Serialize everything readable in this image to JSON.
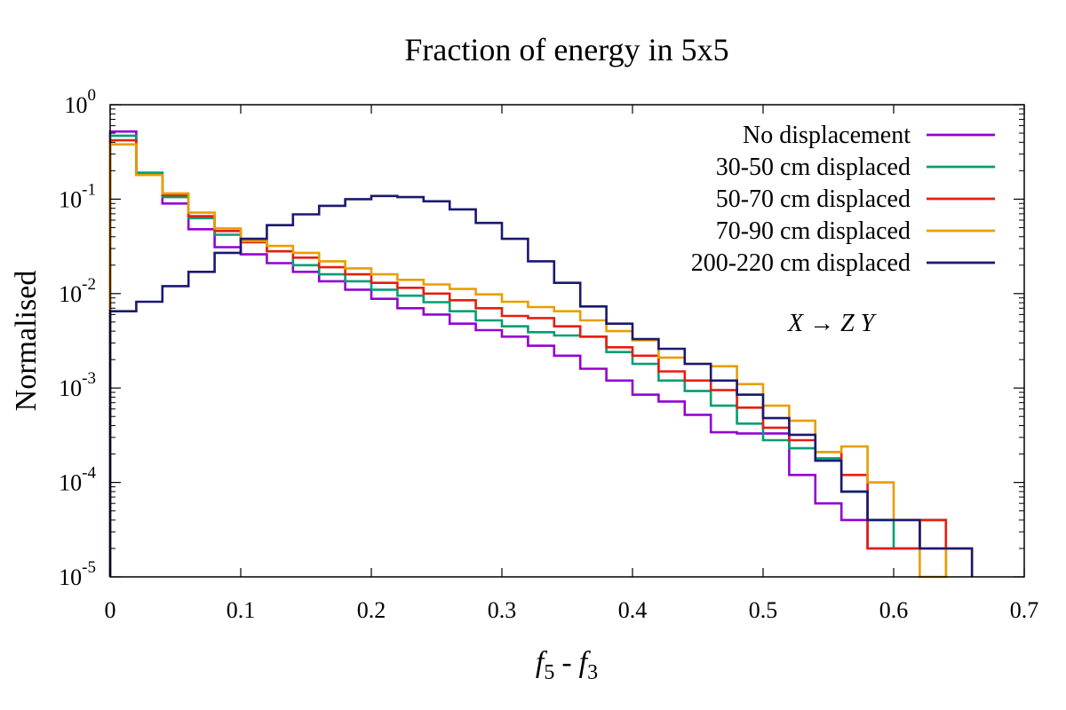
{
  "chart_data": {
    "type": "line",
    "title": "Fraction of energy in 5x5",
    "xlabel": {
      "f": "f",
      "sub_a": "5",
      "minus": "-",
      "sub_b": "3"
    },
    "ylabel": "Normalised",
    "xlim": [
      0,
      0.7
    ],
    "ylim": [
      1e-05,
      1
    ],
    "yscale": "log",
    "x_ticks": [
      "0",
      "0.1",
      "0.2",
      "0.3",
      "0.4",
      "0.5",
      "0.6",
      "0.7"
    ],
    "y_ticks": [
      {
        "base": "10",
        "exp": "0"
      },
      {
        "base": "10",
        "exp": "-1"
      },
      {
        "base": "10",
        "exp": "-2"
      },
      {
        "base": "10",
        "exp": "-3"
      },
      {
        "base": "10",
        "exp": "-4"
      },
      {
        "base": "10",
        "exp": "-5"
      }
    ],
    "legend_position": "top-right",
    "annotation": "X → Z Y",
    "bin_width": 0.02,
    "series": [
      {
        "name": "No displacement",
        "color": "#9400d3",
        "values": [
          0.52,
          0.19,
          0.09,
          0.048,
          0.031,
          0.026,
          0.021,
          0.017,
          0.0135,
          0.011,
          0.0088,
          0.007,
          0.006,
          0.0048,
          0.0041,
          0.0035,
          0.0028,
          0.0022,
          0.0016,
          0.0012,
          0.00085,
          0.00072,
          0.00052,
          0.00034,
          0.00033,
          0.00033,
          0.00012,
          6e-05,
          4e-05,
          2e-05,
          2e-05,
          2e-05,
          2e-05
        ]
      },
      {
        "name": "30-50 cm displaced",
        "color": "#009e73",
        "values": [
          0.47,
          0.19,
          0.105,
          0.063,
          0.042,
          0.036,
          0.028,
          0.02,
          0.016,
          0.0135,
          0.011,
          0.0095,
          0.0081,
          0.0065,
          0.0052,
          0.0045,
          0.0039,
          0.0036,
          0.0035,
          0.0024,
          0.0018,
          0.0012,
          0.00093,
          0.00065,
          0.00042,
          0.00028,
          0.00023,
          0.00018,
          8e-05,
          4e-05,
          2e-05,
          4e-05
        ]
      },
      {
        "name": "50-70 cm displaced",
        "color": "#e51e10",
        "values": [
          0.42,
          0.18,
          0.11,
          0.066,
          0.046,
          0.035,
          0.028,
          0.024,
          0.019,
          0.016,
          0.013,
          0.0115,
          0.01,
          0.0085,
          0.007,
          0.0058,
          0.0055,
          0.0045,
          0.0035,
          0.0027,
          0.0022,
          0.0015,
          0.0012,
          0.00095,
          0.00062,
          0.00038,
          0.00028,
          0.00021,
          0.00012,
          2e-05,
          2e-05,
          4e-05
        ]
      },
      {
        "name": "70-90 cm displaced",
        "color": "#e69f00",
        "values": [
          0.38,
          0.18,
          0.115,
          0.072,
          0.049,
          0.036,
          0.032,
          0.027,
          0.022,
          0.0185,
          0.016,
          0.014,
          0.0125,
          0.0112,
          0.0098,
          0.0082,
          0.0072,
          0.0065,
          0.0052,
          0.004,
          0.0032,
          0.0021,
          0.0018,
          0.0017,
          0.0011,
          0.00065,
          0.00045,
          0.00021,
          0.00024,
          0.0001,
          4e-05,
          1e-05,
          2e-05
        ]
      },
      {
        "name": "200-220 cm displaced",
        "color": "#191970",
        "values": [
          0.0065,
          0.0082,
          0.012,
          0.017,
          0.027,
          0.038,
          0.053,
          0.069,
          0.085,
          0.1,
          0.108,
          0.105,
          0.095,
          0.078,
          0.056,
          0.038,
          0.022,
          0.013,
          0.0073,
          0.0048,
          0.0033,
          0.0026,
          0.0018,
          0.0012,
          0.00085,
          0.00048,
          0.00032,
          0.00017,
          8e-05,
          4e-05,
          4e-05,
          2e-05,
          2e-05
        ]
      }
    ]
  }
}
